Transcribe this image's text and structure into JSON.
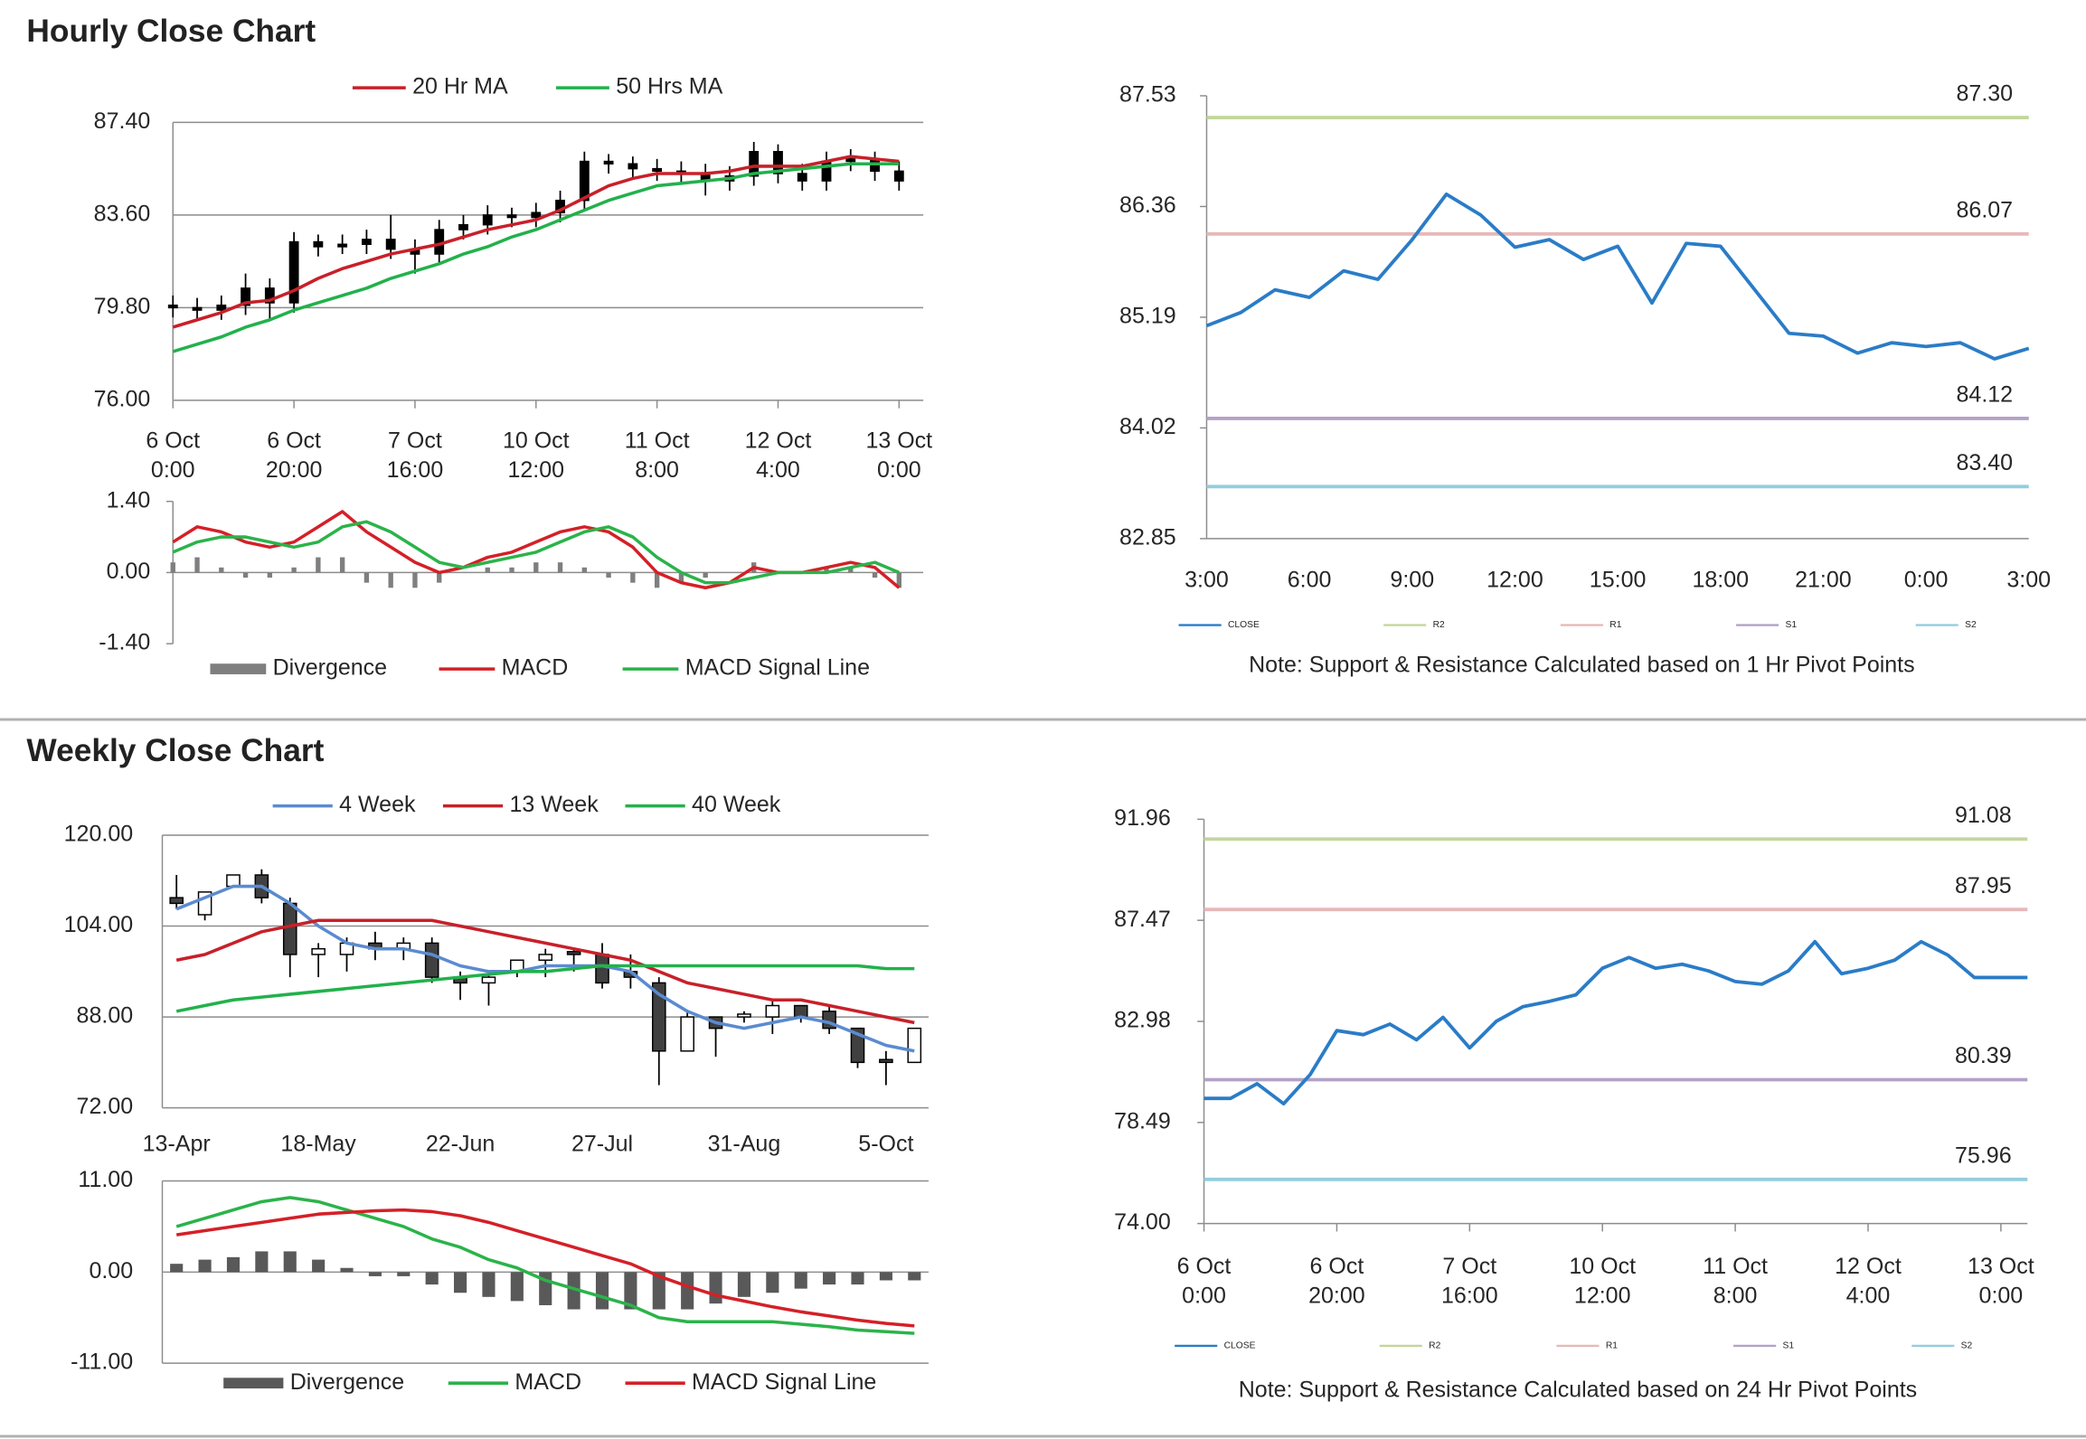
{
  "headers": [
    "Hourly Close Chart",
    "Weekly Close Chart"
  ],
  "chart_data": [
    {
      "type": "candlestick",
      "x": [
        0,
        4,
        8,
        12,
        16,
        20,
        24,
        28,
        32,
        36,
        40,
        44,
        48,
        52,
        56,
        60,
        64,
        68,
        72,
        76,
        80,
        84,
        88,
        92,
        96,
        100,
        104,
        108,
        112,
        116,
        120
      ],
      "xlim": [
        0,
        124
      ],
      "xticks": [
        {
          "value": 0,
          "label": "6 Oct 0:00"
        },
        {
          "value": 20,
          "label": "6 Oct 20:00"
        },
        {
          "value": 40,
          "label": "7 Oct 16:00"
        },
        {
          "value": 60,
          "label": "10 Oct 12:00"
        },
        {
          "value": 80,
          "label": "11 Oct 8:00"
        },
        {
          "value": 100,
          "label": "12 Oct 4:00"
        },
        {
          "value": 120,
          "label": "13 Oct 0:00"
        }
      ],
      "ylim": [
        76,
        87.4
      ],
      "yticks": [
        {
          "value": 76,
          "label": "76.00"
        },
        {
          "value": 79.8,
          "label": "79.80"
        },
        {
          "value": 83.6,
          "label": "83.60"
        },
        {
          "value": 87.4,
          "label": "87.40"
        }
      ],
      "grid": true,
      "legend": "top",
      "up_color": "#000000",
      "down_color": "#000000",
      "ohlc": {
        "open": [
          79.9,
          79.8,
          79.7,
          79.9,
          80.6,
          80.0,
          82.5,
          82.3,
          82.4,
          82.6,
          82.2,
          82.0,
          83.0,
          83.2,
          83.6,
          83.5,
          83.7,
          84.2,
          85.8,
          85.7,
          85.5,
          85.4,
          85.3,
          85.0,
          85.2,
          86.2,
          85.3,
          85.0,
          85.8,
          85.9,
          85.4
        ],
        "high": [
          80.3,
          80.2,
          80.3,
          81.2,
          81.0,
          82.9,
          82.8,
          82.8,
          83.0,
          83.6,
          82.6,
          83.4,
          83.6,
          84.0,
          83.9,
          84.1,
          84.6,
          86.2,
          86.1,
          86.0,
          85.9,
          85.8,
          85.7,
          85.6,
          86.6,
          86.5,
          85.7,
          86.2,
          86.3,
          86.2,
          85.8
        ],
        "low": [
          79.4,
          79.3,
          79.3,
          79.5,
          79.3,
          79.6,
          81.9,
          82.0,
          82.0,
          81.8,
          81.2,
          81.6,
          82.6,
          82.8,
          83.1,
          83.1,
          83.3,
          83.8,
          85.3,
          85.1,
          85.0,
          84.9,
          84.4,
          84.6,
          84.8,
          84.9,
          84.6,
          84.6,
          85.4,
          85.0,
          84.6
        ],
        "close": [
          79.8,
          79.7,
          79.9,
          80.6,
          80.0,
          82.5,
          82.3,
          82.4,
          82.6,
          82.2,
          82.0,
          83.0,
          83.2,
          83.6,
          83.5,
          83.7,
          84.2,
          85.8,
          85.7,
          85.5,
          85.4,
          85.3,
          85.0,
          85.2,
          86.2,
          85.3,
          85.0,
          85.8,
          85.9,
          85.4,
          85.0
        ]
      },
      "series": [
        {
          "name": "20 Hr MA",
          "color": "#c8202a",
          "values": [
            79.0,
            79.3,
            79.6,
            80.0,
            80.1,
            80.5,
            81.0,
            81.4,
            81.7,
            82.0,
            82.2,
            82.4,
            82.7,
            83.0,
            83.2,
            83.4,
            83.8,
            84.3,
            84.8,
            85.1,
            85.3,
            85.3,
            85.3,
            85.4,
            85.6,
            85.6,
            85.6,
            85.8,
            86.0,
            85.9,
            85.8
          ]
        },
        {
          "name": "50 Hrs MA",
          "color": "#22b14c",
          "values": [
            78.0,
            78.3,
            78.6,
            79.0,
            79.3,
            79.7,
            80.0,
            80.3,
            80.6,
            81.0,
            81.3,
            81.6,
            82.0,
            82.3,
            82.7,
            83.0,
            83.4,
            83.8,
            84.2,
            84.5,
            84.8,
            84.9,
            85.0,
            85.1,
            85.3,
            85.4,
            85.5,
            85.6,
            85.7,
            85.7,
            85.7
          ]
        }
      ]
    },
    {
      "type": "combo",
      "x": [
        0,
        4,
        8,
        12,
        16,
        20,
        24,
        28,
        32,
        36,
        40,
        44,
        48,
        52,
        56,
        60,
        64,
        68,
        72,
        76,
        80,
        84,
        88,
        92,
        96,
        100,
        104,
        108,
        112,
        116,
        120
      ],
      "xlim": [
        0,
        124
      ],
      "ylim": [
        -1.4,
        1.4
      ],
      "yticks": [
        {
          "value": -1.4,
          "label": "-1.40"
        },
        {
          "value": 0,
          "label": "0.00"
        },
        {
          "value": 1.4,
          "label": "1.40"
        }
      ],
      "grid": false,
      "legend": "bottom",
      "series": [
        {
          "name": "Divergence",
          "kind": "bar",
          "color": "#7f7f7f",
          "values": [
            0.2,
            0.3,
            0.1,
            -0.1,
            -0.1,
            0.1,
            0.3,
            0.3,
            -0.2,
            -0.3,
            -0.3,
            -0.2,
            0.0,
            0.1,
            0.1,
            0.2,
            0.2,
            0.1,
            -0.1,
            -0.2,
            -0.3,
            -0.2,
            -0.1,
            0.0,
            0.2,
            0.0,
            0.0,
            0.1,
            0.1,
            -0.1,
            -0.3
          ]
        },
        {
          "name": "MACD",
          "kind": "line",
          "color": "#d42027",
          "values": [
            0.6,
            0.9,
            0.8,
            0.6,
            0.5,
            0.6,
            0.9,
            1.2,
            0.8,
            0.5,
            0.2,
            0.0,
            0.1,
            0.3,
            0.4,
            0.6,
            0.8,
            0.9,
            0.8,
            0.5,
            0.0,
            -0.2,
            -0.3,
            -0.2,
            0.1,
            0.0,
            0.0,
            0.1,
            0.2,
            0.1,
            -0.3
          ]
        },
        {
          "name": "MACD Signal Line",
          "kind": "line",
          "color": "#2bb34a",
          "values": [
            0.4,
            0.6,
            0.7,
            0.7,
            0.6,
            0.5,
            0.6,
            0.9,
            1.0,
            0.8,
            0.5,
            0.2,
            0.1,
            0.2,
            0.3,
            0.4,
            0.6,
            0.8,
            0.9,
            0.7,
            0.3,
            0.0,
            -0.2,
            -0.2,
            -0.1,
            0.0,
            0.0,
            0.0,
            0.1,
            0.2,
            0.0
          ]
        }
      ]
    },
    {
      "type": "line",
      "categories": [
        "3:00",
        null,
        null,
        "6:00",
        null,
        null,
        "9:00",
        null,
        null,
        "12:00",
        null,
        null,
        "15:00",
        null,
        null,
        "18:00",
        null,
        null,
        "21:00",
        null,
        null,
        "0:00",
        null,
        null,
        "3:00"
      ],
      "ylim": [
        82.85,
        87.53
      ],
      "yticks": [
        82.85,
        84.02,
        85.19,
        86.36,
        87.53
      ],
      "grid": false,
      "legend": "bottom",
      "series": [
        {
          "name": "CLOSE",
          "color": "#2a7cc7",
          "values": [
            85.1,
            85.24,
            85.48,
            85.4,
            85.68,
            85.59,
            86.01,
            86.49,
            86.27,
            85.93,
            86.01,
            85.8,
            85.94,
            85.34,
            85.97,
            85.94,
            85.48,
            85.02,
            84.99,
            84.81,
            84.92,
            84.88,
            84.92,
            84.75,
            84.86
          ]
        }
      ],
      "levels": [
        {
          "name": "R2",
          "value": 87.3,
          "label": "87.30",
          "color": "#c3d69b"
        },
        {
          "name": "R1",
          "value": 86.07,
          "color": "#e6b9b8"
        },
        {
          "name": "S1",
          "value": 84.12,
          "color": "#b3a2c7"
        },
        {
          "name": "S2",
          "value": 83.4,
          "label": "83.40",
          "color": "#93cddd"
        }
      ],
      "note": "Note: Support & Resistance Calculated based on 1 Hr Pivot Points"
    },
    {
      "type": "candlestick",
      "categories": [
        "13-Apr",
        null,
        null,
        null,
        null,
        "18-May",
        null,
        null,
        null,
        null,
        "22-Jun",
        null,
        null,
        null,
        null,
        "27-Jul",
        null,
        null,
        null,
        null,
        "31-Aug",
        null,
        null,
        null,
        null,
        "5-Oct",
        null
      ],
      "ylim": [
        72,
        120
      ],
      "yticks": [
        {
          "value": 72,
          "label": "72.00"
        },
        {
          "value": 88,
          "label": "88.00"
        },
        {
          "value": 104,
          "label": "104.00"
        },
        {
          "value": 120,
          "label": "120.00"
        }
      ],
      "grid": true,
      "legend": "top",
      "up_color": "#ffffff",
      "down_color": "#404040",
      "ohlc": {
        "open": [
          109,
          106,
          111,
          113,
          108,
          99,
          99,
          101,
          100,
          101,
          95,
          94,
          96,
          98,
          99.5,
          99,
          96,
          94,
          82,
          88,
          88,
          88,
          90,
          89,
          86,
          80.5,
          80
        ],
        "high": [
          113,
          110,
          113,
          114,
          109,
          101,
          102,
          103,
          102,
          102,
          96,
          96,
          98,
          100,
          100,
          101,
          99,
          95,
          89,
          88,
          89,
          91,
          90,
          90,
          86,
          82,
          86
        ],
        "low": [
          107,
          105,
          111,
          108,
          95,
          95,
          96,
          98,
          98,
          94,
          91,
          90,
          95,
          95,
          96,
          93,
          93,
          76,
          82,
          81,
          87,
          85,
          87,
          85,
          79,
          76,
          80
        ],
        "close": [
          108,
          110,
          113,
          109,
          99,
          100,
          101,
          100,
          101,
          95,
          94,
          95,
          98,
          99,
          99,
          94,
          95,
          82,
          88,
          86,
          88.5,
          90,
          88,
          86,
          80,
          80,
          86
        ]
      },
      "series": [
        {
          "name": "4 Week",
          "color": "#5b8bd0",
          "values": [
            107,
            109,
            111,
            111,
            108,
            104,
            101,
            100,
            100,
            99,
            97,
            96,
            96,
            97,
            97,
            97,
            96,
            92,
            89,
            87,
            86,
            87,
            88,
            87,
            85,
            83,
            82
          ]
        },
        {
          "name": "13 Week",
          "color": "#c8202a",
          "values": [
            98,
            99,
            101,
            103,
            104,
            105,
            105,
            105,
            105,
            105,
            104,
            103,
            102,
            101,
            100,
            99,
            98,
            96,
            94,
            93,
            92,
            91,
            91,
            90,
            89,
            88,
            87
          ]
        },
        {
          "name": "40 Week",
          "color": "#22b14c",
          "values": [
            89,
            90,
            91,
            91.5,
            92,
            92.5,
            93,
            93.5,
            94,
            94.5,
            95,
            95.5,
            96,
            96,
            96.5,
            97,
            97,
            97,
            97,
            97,
            97,
            97,
            97,
            97,
            97,
            96.5,
            96.5
          ]
        }
      ]
    },
    {
      "type": "combo",
      "x": [
        0,
        1,
        2,
        3,
        4,
        5,
        6,
        7,
        8,
        9,
        10,
        11,
        12,
        13,
        14,
        15,
        16,
        17,
        18,
        19,
        20,
        21,
        22,
        23,
        24,
        25,
        26
      ],
      "xlim": [
        -0.5,
        26.5
      ],
      "ylim": [
        -11,
        11
      ],
      "yticks": [
        {
          "value": -11,
          "label": "-11.00"
        },
        {
          "value": 0,
          "label": "0.00"
        },
        {
          "value": 11,
          "label": "11.00"
        }
      ],
      "grid": true,
      "legend": "bottom",
      "series": [
        {
          "name": "Divergence",
          "kind": "bar",
          "color": "#595959",
          "values": [
            1.0,
            1.5,
            1.8,
            2.5,
            2.5,
            1.5,
            0.5,
            -0.5,
            -0.5,
            -1.5,
            -2.5,
            -3.0,
            -3.5,
            -4.0,
            -4.5,
            -4.5,
            -4.5,
            -4.5,
            -4.5,
            -3.8,
            -3.0,
            -2.5,
            -2.0,
            -1.5,
            -1.5,
            -1.0,
            -1.0
          ]
        },
        {
          "name": "MACD",
          "kind": "line",
          "color": "#2bb34a",
          "values": [
            5.5,
            6.5,
            7.5,
            8.5,
            9.0,
            8.5,
            7.5,
            6.5,
            5.5,
            4.0,
            3.0,
            1.5,
            0.5,
            -1.0,
            -2.0,
            -3.0,
            -4.0,
            -5.5,
            -6.0,
            -6.0,
            -6.0,
            -6.0,
            -6.3,
            -6.6,
            -7.0,
            -7.2,
            -7.4
          ]
        },
        {
          "name": "MACD Signal Line",
          "kind": "line",
          "color": "#d42027",
          "values": [
            4.5,
            5.0,
            5.5,
            6.0,
            6.5,
            7.0,
            7.2,
            7.4,
            7.5,
            7.3,
            6.8,
            6.0,
            5.0,
            4.0,
            3.0,
            2.0,
            1.0,
            -0.5,
            -1.7,
            -2.8,
            -3.5,
            -4.2,
            -4.8,
            -5.3,
            -5.8,
            -6.2,
            -6.5
          ]
        }
      ]
    },
    {
      "type": "line",
      "x": [
        0,
        4,
        8,
        12,
        16,
        20,
        24,
        28,
        32,
        36,
        40,
        44,
        48,
        52,
        56,
        60,
        64,
        68,
        72,
        76,
        80,
        84,
        88,
        92,
        96,
        100,
        104,
        108,
        112,
        116,
        120,
        124
      ],
      "xlim": [
        0,
        124
      ],
      "xticks": [
        {
          "value": 0,
          "label": "6 Oct 0:00"
        },
        {
          "value": 20,
          "label": "6 Oct 20:00"
        },
        {
          "value": 40,
          "label": "7 Oct 16:00"
        },
        {
          "value": 60,
          "label": "10 Oct 12:00"
        },
        {
          "value": 80,
          "label": "11 Oct 8:00"
        },
        {
          "value": 100,
          "label": "12 Oct 4:00"
        },
        {
          "value": 120,
          "label": "13 Oct 0:00"
        }
      ],
      "ylim": [
        74,
        91.96
      ],
      "yticks": [
        {
          "value": 74,
          "label": "74.00"
        },
        78.49,
        82.98,
        87.47,
        91.96
      ],
      "grid": false,
      "legend": "bottom",
      "series": [
        {
          "name": "CLOSE",
          "color": "#2a7cc7",
          "values": [
            79.56,
            79.56,
            80.21,
            79.32,
            80.62,
            82.57,
            82.39,
            82.86,
            82.16,
            83.16,
            81.8,
            82.98,
            83.63,
            83.87,
            84.16,
            85.34,
            85.82,
            85.34,
            85.52,
            85.22,
            84.75,
            84.63,
            85.22,
            86.52,
            85.1,
            85.34,
            85.7,
            86.52,
            85.93,
            84.93,
            84.93,
            84.93
          ]
        }
      ],
      "levels": [
        {
          "name": "R2",
          "value": 91.08,
          "color": "#c3d69b"
        },
        {
          "name": "R1",
          "value": 87.95,
          "color": "#e6b9b8"
        },
        {
          "name": "S1",
          "value": 80.39,
          "color": "#b3a2c7"
        },
        {
          "name": "S2",
          "value": 75.96,
          "color": "#93cddd"
        }
      ],
      "note": "Note:  Support & Resistance Calculated based on 24 Hr Pivot Points"
    }
  ]
}
